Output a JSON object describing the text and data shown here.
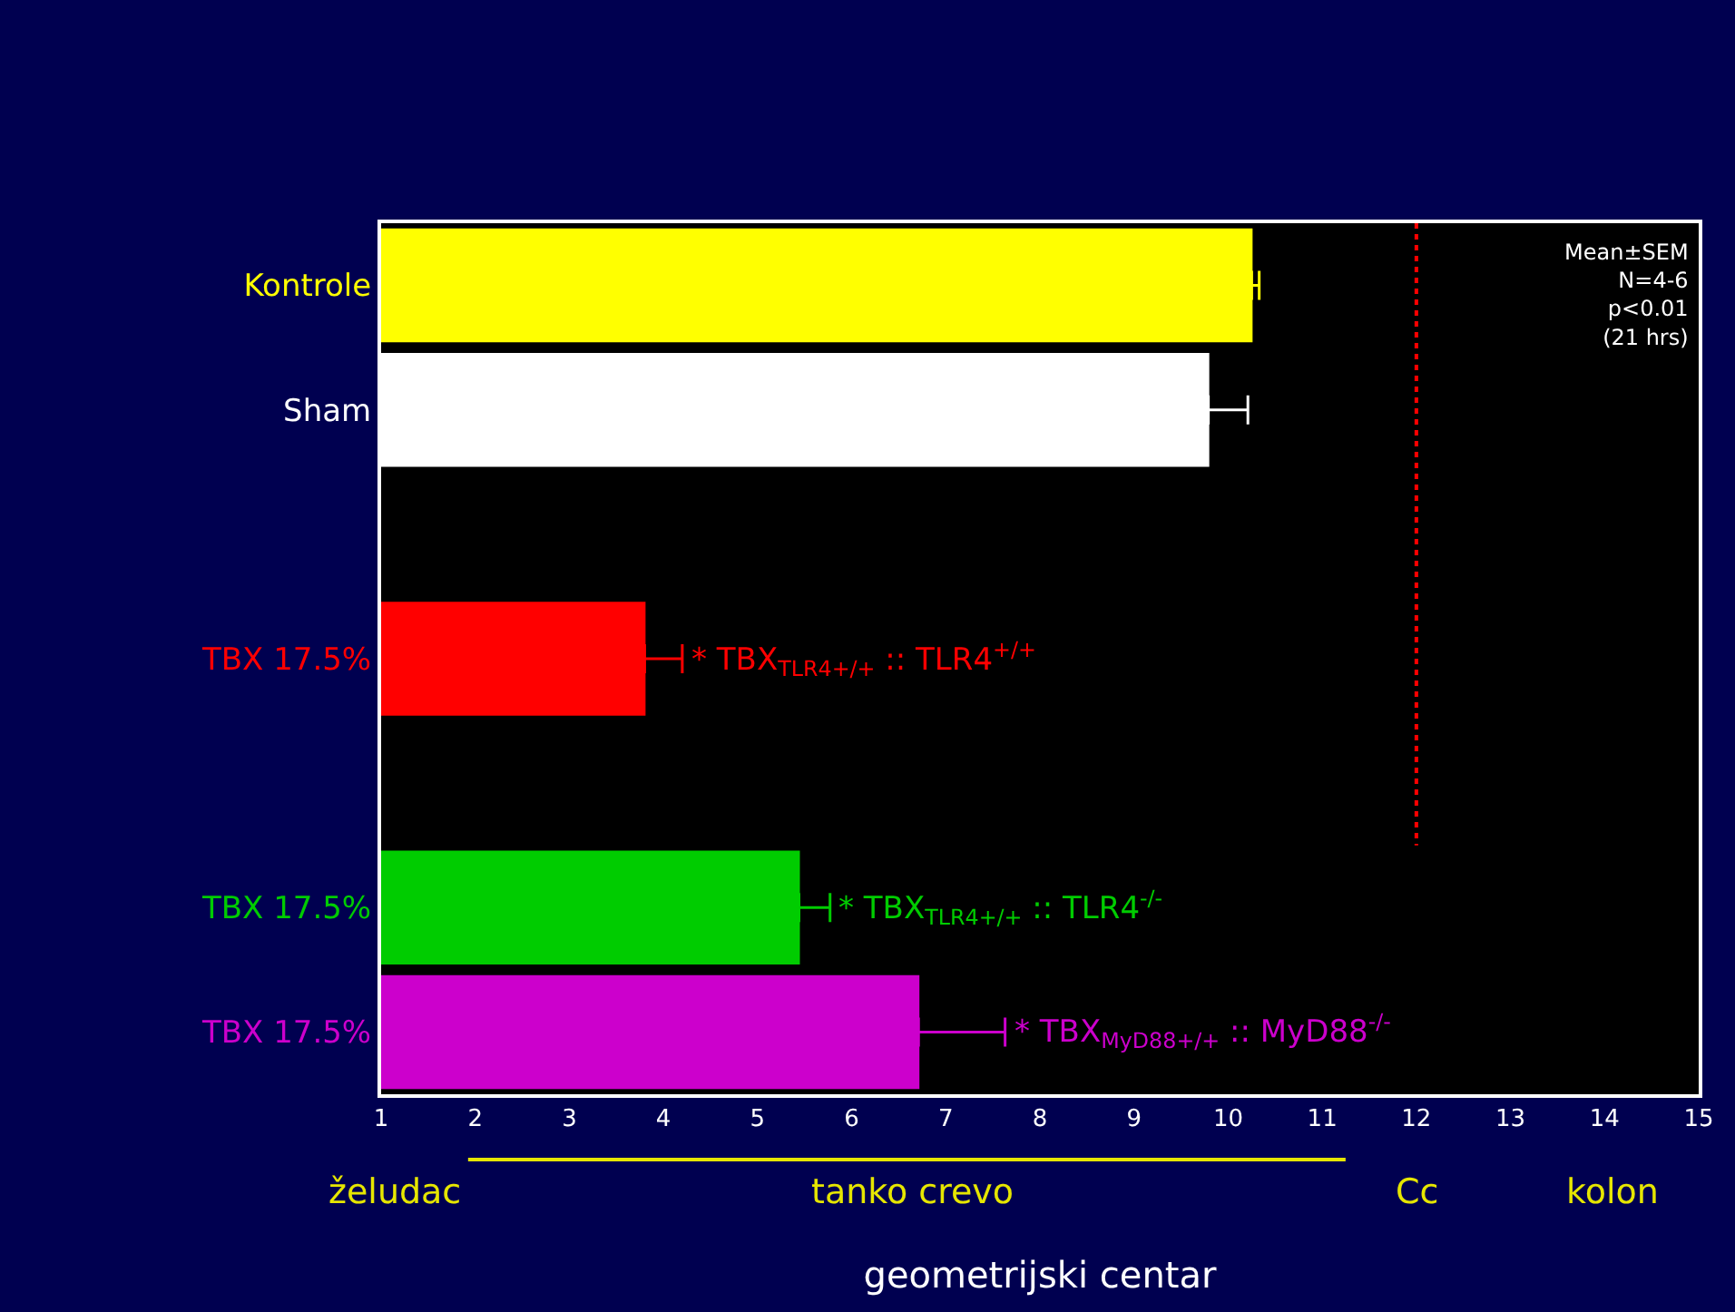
{
  "chart_data": {
    "type": "bar",
    "orientation": "horizontal",
    "categories": [
      "Kontrole",
      "Sham",
      null,
      "TBX 17.5%",
      null,
      "TBX 17.5%",
      "TBX 17.5%"
    ],
    "values": [
      10.25,
      9.79,
      null,
      3.8,
      null,
      5.44,
      6.71
    ],
    "colors": [
      "#ffff00",
      "#ffffff",
      "#000000",
      "#ff0000",
      "#000000",
      "#00cc00",
      "#cc00cc"
    ],
    "errors": [
      [
        10.25,
        10.33
      ],
      [
        9.79,
        10.21
      ],
      null,
      [
        3.8,
        4.2
      ],
      null,
      [
        5.44,
        5.77
      ],
      [
        6.71,
        7.63
      ]
    ],
    "xlim": [
      1,
      15
    ],
    "xticks": [
      1,
      2,
      3,
      4,
      5,
      6,
      7,
      8,
      9,
      10,
      11,
      12,
      13,
      14,
      15
    ],
    "xlabel": "geometrijski centar",
    "ref_lines": [
      {
        "axis": "x",
        "value": 12,
        "color": "#ff0000",
        "line_style": "dotted"
      }
    ],
    "value_labels": [
      null,
      null,
      null,
      "* TBX$_{TLR4+/+}$ :: TLR4$^{+/+}$",
      null,
      "* TBX$_{TLR4+/+}$ :: TLR4$^{-/-}$",
      "* TBX$_{MyD88+/+}$ :: MyD88$^{-/-}$"
    ],
    "annotations": [
      "Mean±SEM\nN=4-6\np<0.01\n(21 hrs)",
      "želudac",
      "tanko crevo",
      "Cc",
      "kolon"
    ],
    "grid": false
  }
}
